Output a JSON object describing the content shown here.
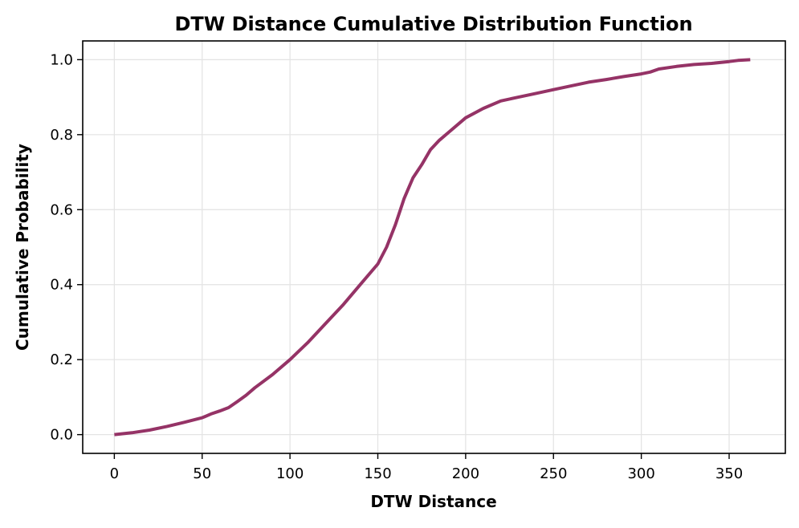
{
  "chart_data": {
    "type": "line",
    "title": "DTW Distance Cumulative Distribution Function",
    "xlabel": "DTW Distance",
    "ylabel": "Cumulative Probability",
    "xlim": [
      -18,
      382
    ],
    "ylim": [
      -0.05,
      1.05
    ],
    "xticks": [
      0,
      50,
      100,
      150,
      200,
      250,
      300,
      350
    ],
    "yticks": [
      0.0,
      0.2,
      0.4,
      0.6,
      0.8,
      1.0
    ],
    "xtick_labels": [
      "0",
      "50",
      "100",
      "150",
      "200",
      "250",
      "300",
      "350"
    ],
    "ytick_labels": [
      "0.0",
      "0.2",
      "0.4",
      "0.6",
      "0.8",
      "1.0"
    ],
    "grid": true,
    "legend": "none",
    "series": [
      {
        "color": "#953366",
        "x": [
          0,
          10,
          20,
          30,
          40,
          50,
          55,
          60,
          65,
          70,
          75,
          80,
          90,
          100,
          110,
          120,
          130,
          140,
          150,
          155,
          160,
          165,
          170,
          175,
          180,
          185,
          190,
          200,
          210,
          220,
          230,
          240,
          250,
          260,
          270,
          280,
          290,
          300,
          305,
          310,
          320,
          330,
          340,
          350,
          355,
          362
        ],
        "y": [
          0.0,
          0.005,
          0.012,
          0.022,
          0.033,
          0.045,
          0.055,
          0.063,
          0.072,
          0.088,
          0.105,
          0.125,
          0.16,
          0.2,
          0.245,
          0.295,
          0.345,
          0.4,
          0.455,
          0.5,
          0.56,
          0.63,
          0.685,
          0.72,
          0.76,
          0.785,
          0.805,
          0.845,
          0.87,
          0.89,
          0.9,
          0.91,
          0.92,
          0.93,
          0.94,
          0.947,
          0.955,
          0.962,
          0.967,
          0.975,
          0.982,
          0.987,
          0.99,
          0.995,
          0.998,
          1.0
        ]
      }
    ]
  }
}
